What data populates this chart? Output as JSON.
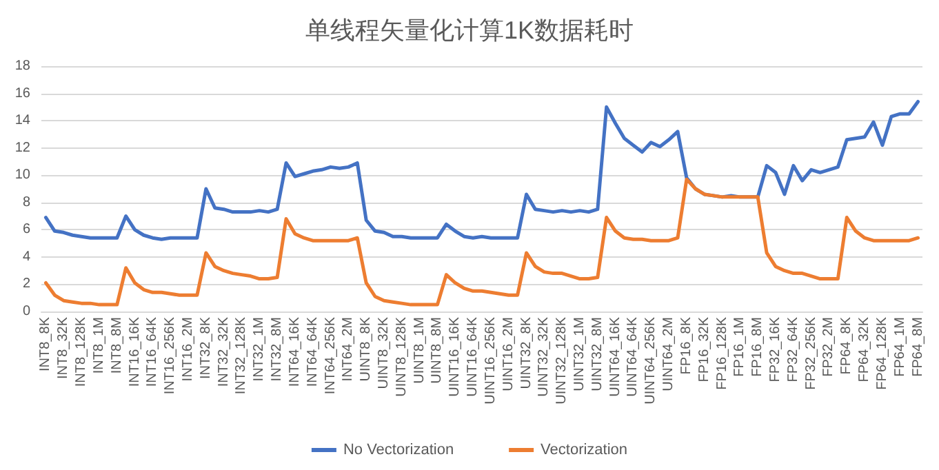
{
  "chart_data": {
    "type": "line",
    "title": "单线程矢量化计算1K数据耗时",
    "categories": [
      "INT8_8K",
      null,
      "INT8_32K",
      null,
      "INT8_128K",
      null,
      "INT8_1M",
      null,
      "INT8_8M",
      null,
      "INT16_16K",
      null,
      "INT16_64K",
      null,
      "INT16_256K",
      null,
      "INT16_2M",
      null,
      "INT32_8K",
      null,
      "INT32_32K",
      null,
      "INT32_128K",
      null,
      "INT32_1M",
      null,
      "INT32_8M",
      null,
      "INT64_16K",
      null,
      "INT64_64K",
      null,
      "INT64_256K",
      null,
      "INT64_2M",
      null,
      "UINT8_8K",
      null,
      "UINT8_32K",
      null,
      "UINT8_128K",
      null,
      "UINT8_1M",
      null,
      "UINT8_8M",
      null,
      "UINT16_16K",
      null,
      "UINT16_64K",
      null,
      "UINT16_256K",
      null,
      "UINT16_2M",
      null,
      "UINT32_8K",
      null,
      "UINT32_32K",
      null,
      "UINT32_128K",
      null,
      "UINT32_1M",
      null,
      "UINT32_8M",
      null,
      "UINT64_16K",
      null,
      "UINT64_64K",
      null,
      "UINT64_256K",
      null,
      "UINT64_2M",
      null,
      "FP16_8K",
      null,
      "FP16_32K",
      null,
      "FP16_128K",
      null,
      "FP16_1M",
      null,
      "FP16_8M",
      null,
      "FP32_16K",
      null,
      "FP32_64K",
      null,
      "FP32_256K",
      null,
      "FP32_2M",
      null,
      "FP64_8K",
      null,
      "FP64_32K",
      null,
      "FP64_128K",
      null,
      "FP64_1M",
      null,
      "FP64_8M"
    ],
    "series": [
      {
        "name": "No Vectorization",
        "color": "#4472c4",
        "values": [
          6.9,
          5.9,
          5.8,
          5.6,
          5.5,
          5.4,
          5.4,
          5.4,
          5.4,
          7.0,
          6.0,
          5.6,
          5.4,
          5.3,
          5.4,
          5.4,
          5.4,
          5.4,
          9.0,
          7.6,
          7.5,
          7.3,
          7.3,
          7.3,
          7.4,
          7.3,
          7.5,
          10.9,
          9.9,
          10.1,
          10.3,
          10.4,
          10.6,
          10.5,
          10.6,
          10.9,
          6.7,
          5.9,
          5.8,
          5.5,
          5.5,
          5.4,
          5.4,
          5.4,
          5.4,
          6.4,
          5.9,
          5.5,
          5.4,
          5.5,
          5.4,
          5.4,
          5.4,
          5.4,
          8.6,
          7.5,
          7.4,
          7.3,
          7.4,
          7.3,
          7.4,
          7.3,
          7.5,
          15.0,
          13.8,
          12.7,
          12.2,
          11.7,
          12.4,
          12.1,
          12.6,
          13.2,
          9.8,
          9.0,
          8.6,
          8.5,
          8.4,
          8.5,
          8.4,
          8.4,
          8.4,
          10.7,
          10.2,
          8.6,
          10.7,
          9.6,
          10.4,
          10.2,
          10.4,
          10.6,
          12.6,
          12.7,
          12.8,
          13.9,
          12.2,
          14.3,
          14.5,
          14.5,
          15.4
        ]
      },
      {
        "name": "Vectorization",
        "color": "#ed7d31",
        "values": [
          2.1,
          1.2,
          0.8,
          0.7,
          0.6,
          0.6,
          0.5,
          0.5,
          0.5,
          3.2,
          2.1,
          1.6,
          1.4,
          1.4,
          1.3,
          1.2,
          1.2,
          1.2,
          4.3,
          3.3,
          3.0,
          2.8,
          2.7,
          2.6,
          2.4,
          2.4,
          2.5,
          6.8,
          5.7,
          5.4,
          5.2,
          5.2,
          5.2,
          5.2,
          5.2,
          5.4,
          2.1,
          1.1,
          0.8,
          0.7,
          0.6,
          0.5,
          0.5,
          0.5,
          0.5,
          2.7,
          2.1,
          1.7,
          1.5,
          1.5,
          1.4,
          1.3,
          1.2,
          1.2,
          4.3,
          3.3,
          2.9,
          2.8,
          2.8,
          2.6,
          2.4,
          2.4,
          2.5,
          6.9,
          5.9,
          5.4,
          5.3,
          5.3,
          5.2,
          5.2,
          5.2,
          5.4,
          9.7,
          9.0,
          8.6,
          8.5,
          8.4,
          8.4,
          8.4,
          8.4,
          8.4,
          4.3,
          3.3,
          3.0,
          2.8,
          2.8,
          2.6,
          2.4,
          2.4,
          2.4,
          6.9,
          5.9,
          5.4,
          5.2,
          5.2,
          5.2,
          5.2,
          5.2,
          5.4
        ]
      }
    ],
    "ylim": [
      0,
      18
    ],
    "yticks": [
      0,
      2,
      4,
      6,
      8,
      10,
      12,
      14,
      16,
      18
    ],
    "grid": "y",
    "legend": "bottom",
    "marker": "none",
    "line_style": "solid"
  }
}
